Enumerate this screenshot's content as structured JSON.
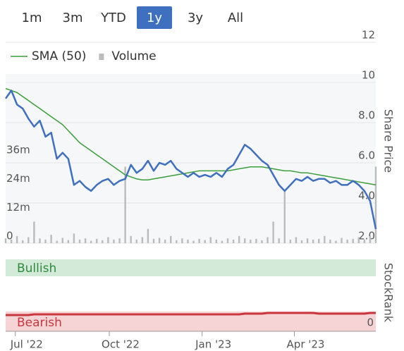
{
  "range_buttons": {
    "labels": [
      "1m",
      "3m",
      "YTD",
      "1y",
      "3y",
      "All"
    ],
    "active": 3
  },
  "chart_data": [
    {
      "type": "line",
      "y_label": "Share Price",
      "xlim": [
        0,
        65
      ],
      "xticks": [
        {
          "value": 1.7,
          "label": "Jul '22"
        },
        {
          "value": 18.2,
          "label": "Oct '22"
        },
        {
          "value": 34.5,
          "label": "Jan '23"
        },
        {
          "value": 50.7,
          "label": "Apr '23"
        }
      ],
      "ylim": [
        2,
        12
      ],
      "yticks": [
        12,
        10,
        {
          "value": 8,
          "label": "8.0"
        },
        {
          "value": 6,
          "label": "6.0"
        },
        {
          "value": 4,
          "label": "4.0"
        },
        {
          "value": 2,
          "label": "2.0"
        }
      ],
      "y2lim": [
        0,
        84000000
      ],
      "y2ticks": [
        {
          "value": 36000000,
          "label": "36m"
        },
        {
          "value": 24000000,
          "label": "24m"
        },
        {
          "value": 12000000,
          "label": "12m"
        },
        0
      ],
      "grid": true,
      "series": [
        {
          "color": "#3f6fbf",
          "values": [
            9.2,
            9.6,
            8.9,
            8.7,
            8.2,
            7.8,
            8.1,
            7.3,
            7.5,
            6.2,
            6.5,
            6.2,
            4.9,
            5.1,
            4.8,
            4.6,
            4.9,
            5.1,
            5.2,
            4.9,
            5.1,
            5.2,
            5.9,
            5.5,
            5.7,
            6.1,
            5.6,
            6.0,
            5.9,
            6.1,
            5.7,
            5.5,
            5.3,
            5.5,
            5.3,
            5.4,
            5.3,
            5.5,
            5.3,
            5.7,
            5.9,
            6.4,
            6.9,
            6.7,
            6.4,
            6.1,
            5.9,
            5.4,
            4.9,
            4.6,
            4.9,
            5.2,
            5.1,
            5.3,
            5.1,
            5.2,
            5.2,
            5.0,
            5.1,
            4.9,
            4.9,
            5.1,
            4.9,
            4.6,
            4.1,
            2.7
          ]
        },
        {
          "name": "SMA (50)",
          "color": "#3a9e3a",
          "values": [
            9.7,
            9.6,
            9.5,
            9.3,
            9.1,
            8.9,
            8.7,
            8.5,
            8.3,
            8.1,
            7.9,
            7.6,
            7.3,
            7.0,
            6.8,
            6.6,
            6.4,
            6.2,
            6.0,
            5.8,
            5.6,
            5.4,
            5.3,
            5.2,
            5.15,
            5.15,
            5.2,
            5.25,
            5.3,
            5.35,
            5.4,
            5.45,
            5.5,
            5.55,
            5.6,
            5.6,
            5.6,
            5.6,
            5.6,
            5.6,
            5.65,
            5.7,
            5.75,
            5.8,
            5.8,
            5.8,
            5.75,
            5.7,
            5.65,
            5.6,
            5.6,
            5.55,
            5.5,
            5.5,
            5.45,
            5.4,
            5.35,
            5.3,
            5.25,
            5.2,
            5.15,
            5.1,
            5.05,
            5.0,
            4.95,
            4.9
          ]
        },
        {
          "name": "Volume",
          "type": "bar",
          "axis": "y2",
          "color": "#bbbbbb",
          "values": [
            2000000,
            1500000,
            3000000,
            1200000,
            2500000,
            9000000,
            2000000,
            1500000,
            3500000,
            1000000,
            2200000,
            1300000,
            4000000,
            1500000,
            2000000,
            1000000,
            1800000,
            1200000,
            2500000,
            1500000,
            2000000,
            32000000,
            3000000,
            1500000,
            2500000,
            6000000,
            1800000,
            2200000,
            1500000,
            3000000,
            1200000,
            2000000,
            1500000,
            1000000,
            1800000,
            1300000,
            2500000,
            1500000,
            1000000,
            2000000,
            1500000,
            3000000,
            2000000,
            1500000,
            1800000,
            1200000,
            2500000,
            9000000,
            2000000,
            22000000,
            1500000,
            2500000,
            1200000,
            2000000,
            1500000,
            1800000,
            3000000,
            1500000,
            1000000,
            2200000,
            1500000,
            1800000,
            2500000,
            1500000,
            3000000,
            32000000
          ]
        }
      ]
    },
    {
      "type": "line",
      "y_label": "StockRank",
      "annotations": [
        "Bullish",
        "Bearish"
      ],
      "xlim": [
        0,
        65
      ],
      "ylim": [
        0,
        100
      ],
      "yticks": [
        0
      ],
      "series": [
        {
          "color": "#c8363e",
          "values": [
            21,
            21,
            21,
            21,
            21,
            22,
            22,
            22,
            22,
            22,
            22,
            22,
            22,
            22,
            22,
            22,
            22,
            22,
            22,
            22,
            22,
            22,
            22,
            22,
            22,
            22,
            22,
            22,
            22,
            22,
            22,
            22,
            22,
            22,
            22,
            22,
            22,
            22,
            22,
            22,
            22,
            22,
            23,
            23,
            23,
            23,
            24,
            24,
            24,
            24,
            24,
            24,
            24,
            24,
            24,
            23,
            23,
            23,
            23,
            23,
            23,
            23,
            23,
            23,
            24,
            24
          ]
        }
      ]
    }
  ]
}
